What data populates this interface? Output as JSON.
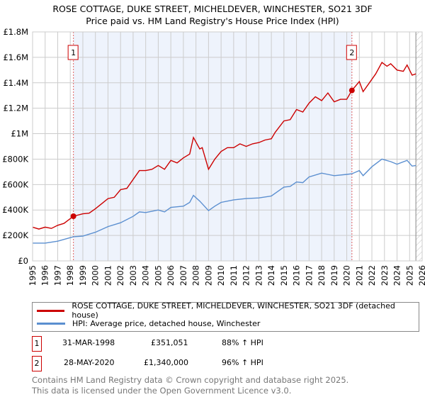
{
  "chart_data": {
    "type": "line",
    "title": "ROSE COTTAGE, DUKE STREET, MICHELDEVER, WINCHESTER, SO21 3DF",
    "subtitle": "Price paid vs. HM Land Registry's House Price Index (HPI)",
    "xlim": [
      1995,
      2026
    ],
    "ylim": [
      0,
      1800000
    ],
    "x_ticks": [
      "1995",
      "1996",
      "1997",
      "1998",
      "1999",
      "2000",
      "2001",
      "2002",
      "2003",
      "2004",
      "2005",
      "2006",
      "2007",
      "2008",
      "2009",
      "2010",
      "2011",
      "2012",
      "2013",
      "2014",
      "2015",
      "2016",
      "2017",
      "2018",
      "2019",
      "2020",
      "2021",
      "2022",
      "2023",
      "2024",
      "2025",
      "2026"
    ],
    "y_ticks": [
      {
        "v": 0,
        "label": "£0"
      },
      {
        "v": 200000,
        "label": "£200K"
      },
      {
        "v": 400000,
        "label": "£400K"
      },
      {
        "v": 600000,
        "label": "£600K"
      },
      {
        "v": 800000,
        "label": "£800K"
      },
      {
        "v": 1000000,
        "label": "£1M"
      },
      {
        "v": 1200000,
        "label": "£1.2M"
      },
      {
        "v": 1400000,
        "label": "£1.4M"
      },
      {
        "v": 1600000,
        "label": "£1.6M"
      },
      {
        "v": 1800000,
        "label": "£1.8M"
      }
    ],
    "grid": true,
    "shaded_range": [
      1998.25,
      2020.41
    ],
    "hatched_from": 2025.5,
    "series": [
      {
        "name": "ROSE COTTAGE, DUKE STREET, MICHELDEVER, WINCHESTER, SO21 3DF (detached house)",
        "color": "#cc0000",
        "x": [
          1995,
          1995.5,
          1996,
          1996.5,
          1997,
          1997.5,
          1998.25,
          1999,
          1999.5,
          2000,
          2000.5,
          2001,
          2001.5,
          2002,
          2002.5,
          2003,
          2003.5,
          2004,
          2004.5,
          2005,
          2005.5,
          2006,
          2006.5,
          2007,
          2007.5,
          2007.8,
          2008.3,
          2008.5,
          2009,
          2009.5,
          2010,
          2010.5,
          2011,
          2011.5,
          2012,
          2012.5,
          2013,
          2013.5,
          2014,
          2014.3,
          2015,
          2015.5,
          2016,
          2016.5,
          2017,
          2017.5,
          2018,
          2018.5,
          2019,
          2019.5,
          2020,
          2020.41,
          2021,
          2021.3,
          2021.8,
          2022.3,
          2022.8,
          2023.2,
          2023.5,
          2024,
          2024.5,
          2024.8,
          2025.2,
          2025.5
        ],
        "y": [
          265000,
          250000,
          265000,
          255000,
          280000,
          295000,
          351051,
          370000,
          375000,
          410000,
          450000,
          490000,
          500000,
          560000,
          570000,
          640000,
          710000,
          710000,
          720000,
          750000,
          720000,
          790000,
          770000,
          810000,
          840000,
          970000,
          880000,
          890000,
          720000,
          800000,
          860000,
          890000,
          890000,
          920000,
          900000,
          920000,
          930000,
          950000,
          960000,
          1010000,
          1100000,
          1110000,
          1190000,
          1170000,
          1240000,
          1290000,
          1260000,
          1320000,
          1250000,
          1270000,
          1270000,
          1340000,
          1410000,
          1330000,
          1400000,
          1470000,
          1560000,
          1530000,
          1550000,
          1500000,
          1490000,
          1540000,
          1460000,
          1470000
        ]
      },
      {
        "name": "HPI: Average price, detached house, Winchester",
        "color": "#5b8fd0",
        "x": [
          1995,
          1996,
          1997,
          1998.25,
          1999,
          2000,
          2001,
          2002,
          2003,
          2003.5,
          2004,
          2005,
          2005.5,
          2006,
          2007,
          2007.5,
          2007.8,
          2008.3,
          2009,
          2009.5,
          2010,
          2011,
          2012,
          2013,
          2014,
          2015,
          2015.5,
          2016,
          2016.5,
          2017,
          2018,
          2018.5,
          2019,
          2020,
          2020.41,
          2021,
          2021.3,
          2022,
          2022.8,
          2023.5,
          2024,
          2024.8,
          2025.2,
          2025.5
        ],
        "y": [
          140000,
          140000,
          155000,
          190000,
          195000,
          225000,
          270000,
          300000,
          350000,
          385000,
          380000,
          400000,
          385000,
          420000,
          430000,
          460000,
          515000,
          470000,
          395000,
          430000,
          460000,
          480000,
          490000,
          495000,
          510000,
          580000,
          585000,
          620000,
          615000,
          660000,
          690000,
          680000,
          670000,
          680000,
          685000,
          710000,
          670000,
          740000,
          800000,
          780000,
          760000,
          790000,
          745000,
          750000
        ]
      }
    ],
    "sales": [
      {
        "n": "1",
        "x": 1998.25,
        "y": 351051,
        "date": "31-MAR-1998",
        "price": "£351,051",
        "hpi": "88% ↑ HPI"
      },
      {
        "n": "2",
        "x": 2020.41,
        "y": 1340000,
        "date": "28-MAY-2020",
        "price": "£1,340,000",
        "hpi": "96% ↑ HPI"
      }
    ]
  },
  "footer": {
    "line1": "Contains HM Land Registry data © Crown copyright and database right 2025.",
    "line2": "This data is licensed under the Open Government Licence v3.0."
  }
}
